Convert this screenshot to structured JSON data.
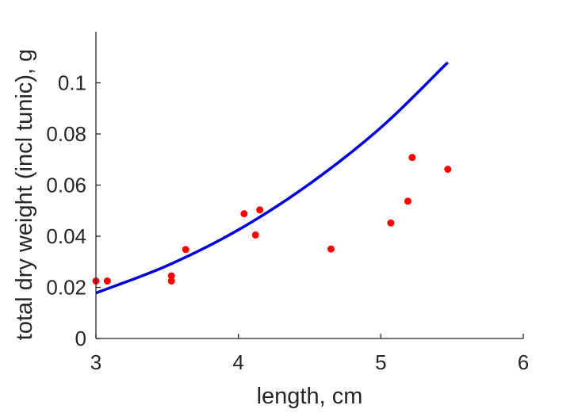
{
  "chart_data": {
    "type": "scatter",
    "xlabel": "length, cm",
    "ylabel": "total dry weight (incl tunic), g",
    "xlim": [
      3,
      6
    ],
    "ylim": [
      0,
      0.12
    ],
    "grid": false,
    "x_ticks": [
      3,
      4,
      5,
      6
    ],
    "x_tick_labels": [
      "3",
      "4",
      "5",
      "6"
    ],
    "y_ticks": [
      0,
      0.02,
      0.04,
      0.06,
      0.08,
      0.1
    ],
    "y_tick_labels": [
      "0",
      "0.02",
      "0.04",
      "0.06",
      "0.08",
      "0.1"
    ],
    "series": [
      {
        "kind": "scatter",
        "color": "#ff0000",
        "points": [
          {
            "x": 3.0,
            "y": 0.0225
          },
          {
            "x": 3.08,
            "y": 0.0225
          },
          {
            "x": 3.53,
            "y": 0.0245
          },
          {
            "x": 3.53,
            "y": 0.0225
          },
          {
            "x": 3.63,
            "y": 0.0348
          },
          {
            "x": 4.04,
            "y": 0.0488
          },
          {
            "x": 4.12,
            "y": 0.0405
          },
          {
            "x": 4.15,
            "y": 0.0503
          },
          {
            "x": 4.65,
            "y": 0.035
          },
          {
            "x": 5.07,
            "y": 0.0452
          },
          {
            "x": 5.19,
            "y": 0.0537
          },
          {
            "x": 5.22,
            "y": 0.0708
          },
          {
            "x": 5.47,
            "y": 0.0662
          }
        ]
      },
      {
        "kind": "line",
        "color": "#0000dd",
        "points": [
          {
            "x": 3.0,
            "y": 0.0178
          },
          {
            "x": 3.5,
            "y": 0.0285
          },
          {
            "x": 4.0,
            "y": 0.0425
          },
          {
            "x": 4.5,
            "y": 0.0605
          },
          {
            "x": 5.0,
            "y": 0.0825
          },
          {
            "x": 5.47,
            "y": 0.108
          }
        ]
      }
    ]
  }
}
